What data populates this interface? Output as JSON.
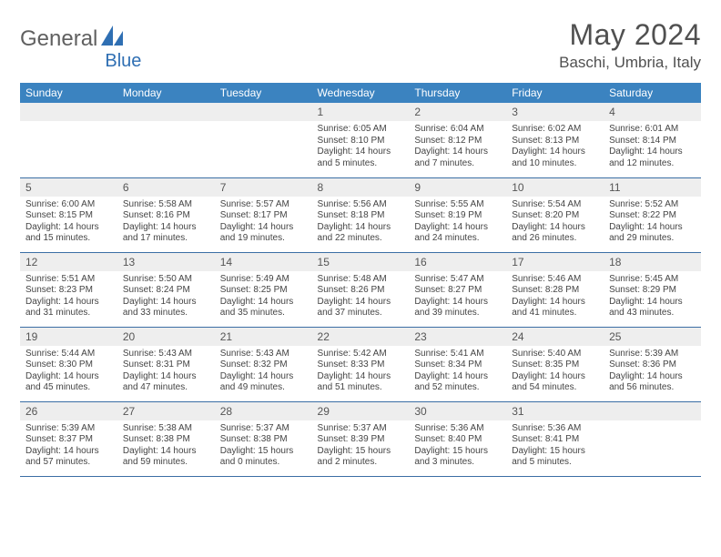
{
  "logo": {
    "text1": "General",
    "text2": "Blue",
    "color_gray": "#606060",
    "color_blue": "#2f6fb3"
  },
  "header": {
    "month_title": "May 2024",
    "location": "Baschi, Umbria, Italy"
  },
  "colors": {
    "header_row_bg": "#3b83c0",
    "header_row_fg": "#ffffff",
    "daynum_bg": "#eeeeee",
    "cell_border": "#3b6ea5"
  },
  "day_headers": [
    "Sunday",
    "Monday",
    "Tuesday",
    "Wednesday",
    "Thursday",
    "Friday",
    "Saturday"
  ],
  "weeks": [
    [
      null,
      null,
      null,
      {
        "n": "1",
        "sr": "Sunrise: 6:05 AM",
        "ss": "Sunset: 8:10 PM",
        "dl1": "Daylight: 14 hours",
        "dl2": "and 5 minutes."
      },
      {
        "n": "2",
        "sr": "Sunrise: 6:04 AM",
        "ss": "Sunset: 8:12 PM",
        "dl1": "Daylight: 14 hours",
        "dl2": "and 7 minutes."
      },
      {
        "n": "3",
        "sr": "Sunrise: 6:02 AM",
        "ss": "Sunset: 8:13 PM",
        "dl1": "Daylight: 14 hours",
        "dl2": "and 10 minutes."
      },
      {
        "n": "4",
        "sr": "Sunrise: 6:01 AM",
        "ss": "Sunset: 8:14 PM",
        "dl1": "Daylight: 14 hours",
        "dl2": "and 12 minutes."
      }
    ],
    [
      {
        "n": "5",
        "sr": "Sunrise: 6:00 AM",
        "ss": "Sunset: 8:15 PM",
        "dl1": "Daylight: 14 hours",
        "dl2": "and 15 minutes."
      },
      {
        "n": "6",
        "sr": "Sunrise: 5:58 AM",
        "ss": "Sunset: 8:16 PM",
        "dl1": "Daylight: 14 hours",
        "dl2": "and 17 minutes."
      },
      {
        "n": "7",
        "sr": "Sunrise: 5:57 AM",
        "ss": "Sunset: 8:17 PM",
        "dl1": "Daylight: 14 hours",
        "dl2": "and 19 minutes."
      },
      {
        "n": "8",
        "sr": "Sunrise: 5:56 AM",
        "ss": "Sunset: 8:18 PM",
        "dl1": "Daylight: 14 hours",
        "dl2": "and 22 minutes."
      },
      {
        "n": "9",
        "sr": "Sunrise: 5:55 AM",
        "ss": "Sunset: 8:19 PM",
        "dl1": "Daylight: 14 hours",
        "dl2": "and 24 minutes."
      },
      {
        "n": "10",
        "sr": "Sunrise: 5:54 AM",
        "ss": "Sunset: 8:20 PM",
        "dl1": "Daylight: 14 hours",
        "dl2": "and 26 minutes."
      },
      {
        "n": "11",
        "sr": "Sunrise: 5:52 AM",
        "ss": "Sunset: 8:22 PM",
        "dl1": "Daylight: 14 hours",
        "dl2": "and 29 minutes."
      }
    ],
    [
      {
        "n": "12",
        "sr": "Sunrise: 5:51 AM",
        "ss": "Sunset: 8:23 PM",
        "dl1": "Daylight: 14 hours",
        "dl2": "and 31 minutes."
      },
      {
        "n": "13",
        "sr": "Sunrise: 5:50 AM",
        "ss": "Sunset: 8:24 PM",
        "dl1": "Daylight: 14 hours",
        "dl2": "and 33 minutes."
      },
      {
        "n": "14",
        "sr": "Sunrise: 5:49 AM",
        "ss": "Sunset: 8:25 PM",
        "dl1": "Daylight: 14 hours",
        "dl2": "and 35 minutes."
      },
      {
        "n": "15",
        "sr": "Sunrise: 5:48 AM",
        "ss": "Sunset: 8:26 PM",
        "dl1": "Daylight: 14 hours",
        "dl2": "and 37 minutes."
      },
      {
        "n": "16",
        "sr": "Sunrise: 5:47 AM",
        "ss": "Sunset: 8:27 PM",
        "dl1": "Daylight: 14 hours",
        "dl2": "and 39 minutes."
      },
      {
        "n": "17",
        "sr": "Sunrise: 5:46 AM",
        "ss": "Sunset: 8:28 PM",
        "dl1": "Daylight: 14 hours",
        "dl2": "and 41 minutes."
      },
      {
        "n": "18",
        "sr": "Sunrise: 5:45 AM",
        "ss": "Sunset: 8:29 PM",
        "dl1": "Daylight: 14 hours",
        "dl2": "and 43 minutes."
      }
    ],
    [
      {
        "n": "19",
        "sr": "Sunrise: 5:44 AM",
        "ss": "Sunset: 8:30 PM",
        "dl1": "Daylight: 14 hours",
        "dl2": "and 45 minutes."
      },
      {
        "n": "20",
        "sr": "Sunrise: 5:43 AM",
        "ss": "Sunset: 8:31 PM",
        "dl1": "Daylight: 14 hours",
        "dl2": "and 47 minutes."
      },
      {
        "n": "21",
        "sr": "Sunrise: 5:43 AM",
        "ss": "Sunset: 8:32 PM",
        "dl1": "Daylight: 14 hours",
        "dl2": "and 49 minutes."
      },
      {
        "n": "22",
        "sr": "Sunrise: 5:42 AM",
        "ss": "Sunset: 8:33 PM",
        "dl1": "Daylight: 14 hours",
        "dl2": "and 51 minutes."
      },
      {
        "n": "23",
        "sr": "Sunrise: 5:41 AM",
        "ss": "Sunset: 8:34 PM",
        "dl1": "Daylight: 14 hours",
        "dl2": "and 52 minutes."
      },
      {
        "n": "24",
        "sr": "Sunrise: 5:40 AM",
        "ss": "Sunset: 8:35 PM",
        "dl1": "Daylight: 14 hours",
        "dl2": "and 54 minutes."
      },
      {
        "n": "25",
        "sr": "Sunrise: 5:39 AM",
        "ss": "Sunset: 8:36 PM",
        "dl1": "Daylight: 14 hours",
        "dl2": "and 56 minutes."
      }
    ],
    [
      {
        "n": "26",
        "sr": "Sunrise: 5:39 AM",
        "ss": "Sunset: 8:37 PM",
        "dl1": "Daylight: 14 hours",
        "dl2": "and 57 minutes."
      },
      {
        "n": "27",
        "sr": "Sunrise: 5:38 AM",
        "ss": "Sunset: 8:38 PM",
        "dl1": "Daylight: 14 hours",
        "dl2": "and 59 minutes."
      },
      {
        "n": "28",
        "sr": "Sunrise: 5:37 AM",
        "ss": "Sunset: 8:38 PM",
        "dl1": "Daylight: 15 hours",
        "dl2": "and 0 minutes."
      },
      {
        "n": "29",
        "sr": "Sunrise: 5:37 AM",
        "ss": "Sunset: 8:39 PM",
        "dl1": "Daylight: 15 hours",
        "dl2": "and 2 minutes."
      },
      {
        "n": "30",
        "sr": "Sunrise: 5:36 AM",
        "ss": "Sunset: 8:40 PM",
        "dl1": "Daylight: 15 hours",
        "dl2": "and 3 minutes."
      },
      {
        "n": "31",
        "sr": "Sunrise: 5:36 AM",
        "ss": "Sunset: 8:41 PM",
        "dl1": "Daylight: 15 hours",
        "dl2": "and 5 minutes."
      },
      null
    ]
  ]
}
